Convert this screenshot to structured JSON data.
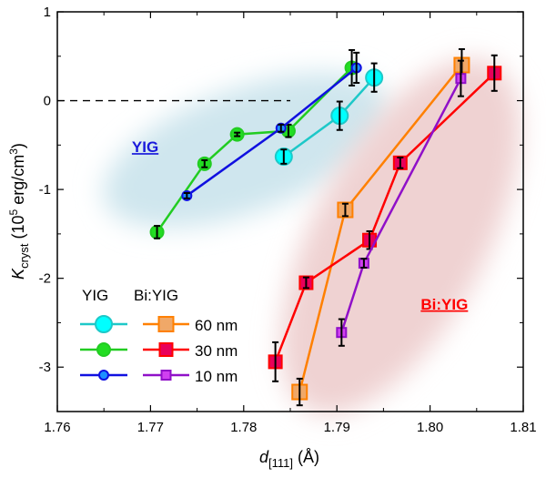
{
  "chart_data": {
    "type": "line",
    "xlabel": {
      "main": "d",
      "sub": "[111]",
      "unit": " (Å)"
    },
    "ylabel": {
      "main": "K",
      "sub": "cryst",
      "unit_pre": " (10",
      "sup1": "5",
      "unit_mid": " erg/cm",
      "sup2": "3",
      "unit_post": ")"
    },
    "xlim": [
      1.76,
      1.81
    ],
    "ylim": [
      -3.5,
      1
    ],
    "xticks": [
      "1.76",
      "1.77",
      "1.78",
      "1.79",
      "1.80",
      "1.81"
    ],
    "yticks": [
      "1",
      "0",
      "-1",
      "-2",
      "-3"
    ],
    "grid": false,
    "reference_line": {
      "y": 0,
      "x_range": [
        1.76,
        1.785
      ],
      "style": "dashed"
    },
    "annotations": [
      {
        "text": "YIG",
        "color": "#1a1adb",
        "x": 1.768,
        "y": -0.58
      },
      {
        "text": "Bi:YIG",
        "color": "#ff0000",
        "x": 1.799,
        "y": -2.35
      }
    ],
    "legend": {
      "placement": "bottom-left",
      "headers": [
        "YIG",
        "Bi:YIG"
      ],
      "row_labels": [
        "60 nm",
        "30 nm",
        "10 nm"
      ]
    },
    "series": [
      {
        "name": "YIG 60 nm",
        "color": "#1ec8c8",
        "fill": "#00ffff",
        "marker": "circle-large",
        "x": [
          1.7843,
          1.7903,
          1.794
        ],
        "y": [
          -0.63,
          -0.17,
          0.26
        ],
        "err": [
          0.08,
          0.16,
          0.16
        ]
      },
      {
        "name": "YIG 30 nm",
        "color": "#22cc22",
        "fill": "#22dd22",
        "marker": "circle-medium",
        "x": [
          1.7707,
          1.7758,
          1.7793,
          1.7848,
          1.7916
        ],
        "y": [
          -1.48,
          -0.71,
          -0.38,
          -0.34,
          0.37
        ],
        "err": [
          0.07,
          0.04,
          0.02,
          0.07,
          0.2
        ]
      },
      {
        "name": "YIG 10 nm",
        "color": "#1010e0",
        "fill": "#1e90ff",
        "marker": "circle-small",
        "x": [
          1.7739,
          1.784,
          1.7921
        ],
        "y": [
          -1.07,
          -0.31,
          0.37
        ],
        "err": [
          0.03,
          0.04,
          0.17
        ]
      },
      {
        "name": "Bi:YIG 60 nm",
        "color": "#ff8000",
        "fill": "#f0a868",
        "marker": "square-large",
        "x": [
          1.786,
          1.7909,
          1.8034
        ],
        "y": [
          -3.28,
          -1.23,
          0.4
        ],
        "err": [
          0.15,
          0.07,
          0.18
        ]
      },
      {
        "name": "Bi:YIG 30 nm",
        "color": "#ff0000",
        "fill": "#e8005a",
        "marker": "square-medium",
        "x": [
          1.7834,
          1.7867,
          1.7935,
          1.7968,
          1.8069
        ],
        "y": [
          -2.94,
          -2.05,
          -1.57,
          -0.7,
          0.31
        ],
        "err": [
          0.22,
          0.06,
          0.1,
          0.06,
          0.2
        ]
      },
      {
        "name": "Bi:YIG 10 nm",
        "color": "#9010c8",
        "fill": "#d040f0",
        "marker": "square-small",
        "x": [
          1.7905,
          1.7929,
          1.8033
        ],
        "y": [
          -2.61,
          -1.83,
          0.25
        ],
        "err": [
          0.15,
          0.05,
          0.2
        ]
      }
    ]
  }
}
